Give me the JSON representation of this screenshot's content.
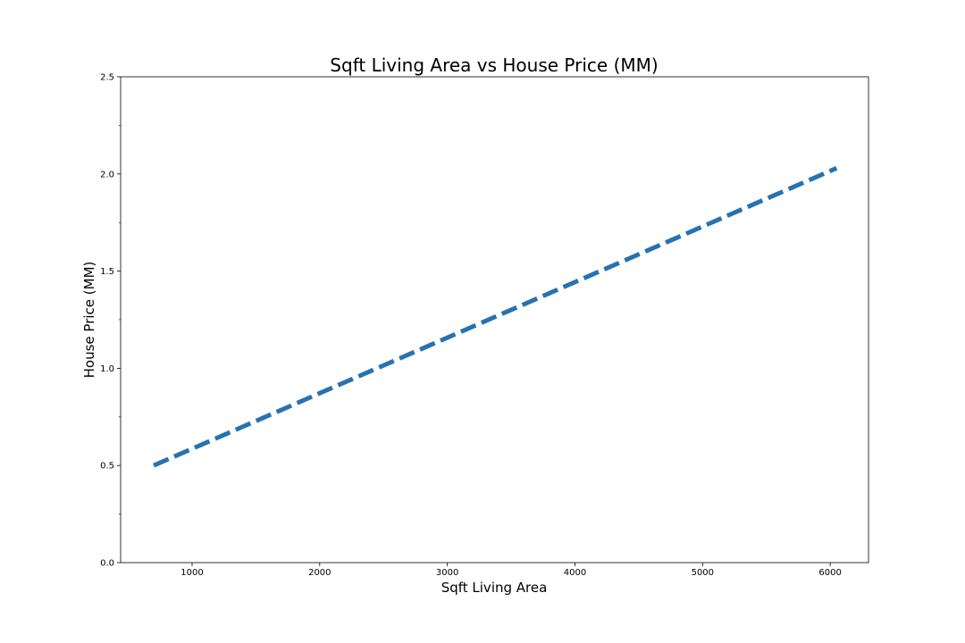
{
  "chart_data": {
    "type": "line",
    "title": "Sqft Living Area vs House Price (MM)",
    "xlabel": "Sqft Living Area",
    "ylabel": "House Price (MM)",
    "xlim": [
      440,
      6300
    ],
    "ylim": [
      0.0,
      2.5
    ],
    "x_ticks": [
      1000,
      2000,
      3000,
      4000,
      5000,
      6000
    ],
    "x_tick_labels": [
      "1000",
      "2000",
      "3000",
      "4000",
      "5000",
      "6000"
    ],
    "y_ticks": [
      0.0,
      0.5,
      1.0,
      1.5,
      2.0,
      2.5
    ],
    "y_tick_labels": [
      "0.0",
      "0.5",
      "1.0",
      "1.5",
      "2.0",
      "2.5"
    ],
    "y_minor_ticks": [
      0.25,
      0.75,
      1.25,
      1.75,
      2.25
    ],
    "grid": false,
    "series": [
      {
        "color": "#2673b0",
        "line_style": "dashed",
        "x": [
          700,
          6050
        ],
        "y": [
          0.5,
          2.03
        ]
      }
    ]
  }
}
